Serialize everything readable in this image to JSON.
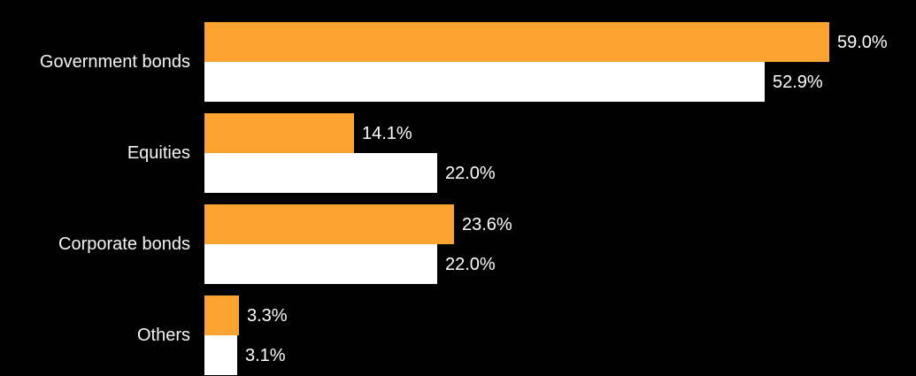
{
  "chart_data": {
    "type": "bar",
    "orientation": "horizontal",
    "title": "",
    "categories": [
      "Government bonds",
      "Equities",
      "Corporate bonds",
      "Others"
    ],
    "series": [
      {
        "name": "orange",
        "color": "#FAA330",
        "values": [
          59.0,
          14.1,
          23.6,
          3.3
        ],
        "value_labels": [
          "59.0%",
          "14.1%",
          "23.6%",
          "3.3%"
        ]
      },
      {
        "name": "white",
        "color": "#FFFFFF",
        "values": [
          52.9,
          22.0,
          22.0,
          3.1
        ],
        "value_labels": [
          "52.9%",
          "22.0%",
          "22.0%",
          "3.1%"
        ]
      }
    ],
    "xlim": [
      0,
      59
    ],
    "axes_visible": false,
    "gridlines": false,
    "legend": "none",
    "background_color": "#000000",
    "label_color": "#FFFFFF"
  }
}
